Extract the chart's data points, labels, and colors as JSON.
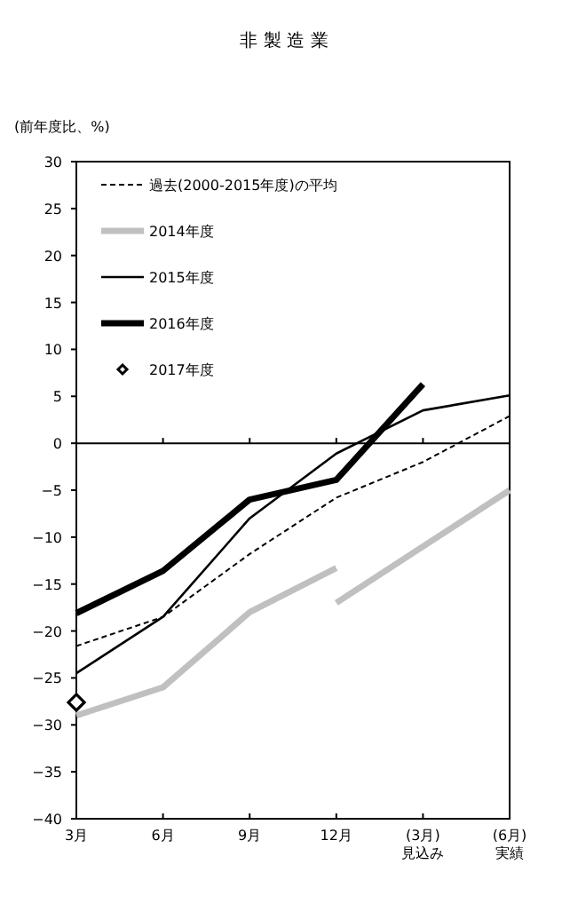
{
  "chart_data": {
    "type": "line",
    "title": "非 製 造 業",
    "ylabel": "(前年度比、%)",
    "categories": [
      "3月",
      "6月",
      "9月",
      "12月",
      "(3月)\n見込み",
      "(6月)\n実績"
    ],
    "series": [
      {
        "name": "過去(2000-2015年度)の平均",
        "color": "#000000",
        "line_style": "dashed",
        "values": [
          -21.6,
          -18.5,
          -11.8,
          -5.8,
          -2.0,
          2.9
        ]
      },
      {
        "name": "2014年度",
        "color": "#c0c0c0",
        "line_style": "solid",
        "values": [
          -29,
          -26,
          -18,
          -13.3,
          null,
          null
        ]
      },
      {
        "color": "#c0c0c0",
        "line_style": "solid",
        "values": [
          null,
          null,
          null,
          -17,
          -11,
          -5
        ]
      },
      {
        "name": "2015年度",
        "color": "#000000",
        "line_style": "solid",
        "values": [
          -24.5,
          -18.5,
          -8,
          -1.1,
          3.5,
          5.1
        ]
      },
      {
        "name": "2016年度",
        "color": "#000000",
        "line_style": "solid",
        "values": [
          -18.1,
          -13.6,
          -6,
          -3.9,
          6.3,
          null
        ]
      },
      {
        "name": "2017年度",
        "type": "scatter",
        "marker": "diamond",
        "color": "#000000",
        "values": [
          -27.6,
          null,
          null,
          null,
          null,
          null
        ]
      }
    ],
    "ylim": [
      -40,
      30
    ],
    "yticks": [
      -40,
      -35,
      -30,
      -25,
      -20,
      -15,
      -10,
      -5,
      0,
      5,
      10,
      15,
      20,
      25,
      30
    ],
    "ref_lines": [
      {
        "axis": "y",
        "value": 0
      }
    ],
    "grid": false,
    "legend": "top left"
  }
}
